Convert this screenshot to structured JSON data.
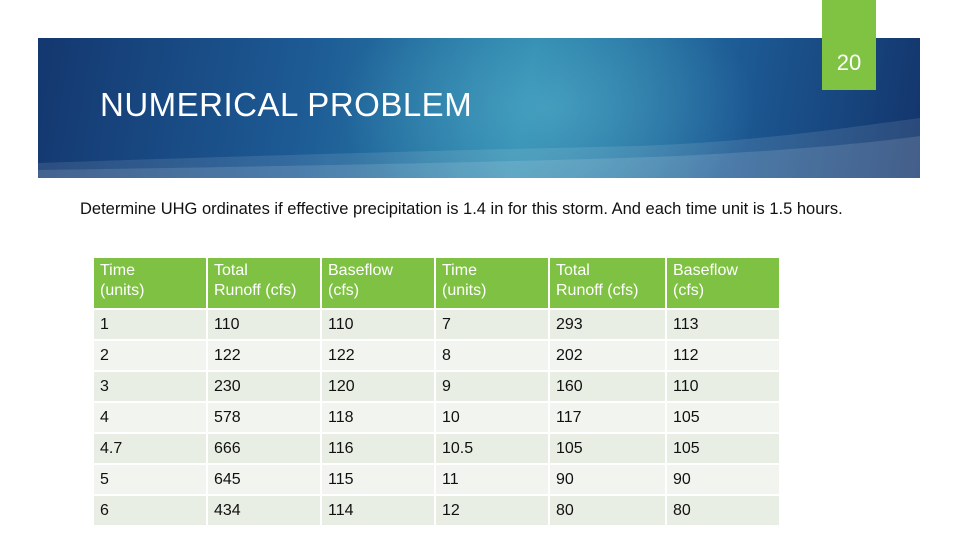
{
  "slide": {
    "page_number": "20",
    "title": "NUMERICAL PROBLEM",
    "body_text": "Determine UHG ordinates if effective precipitation is 1.4 in for this storm. And each time unit is 1.5 hours."
  },
  "table": {
    "headers": [
      [
        "Time",
        "(units)"
      ],
      [
        "Total",
        "Runoff (cfs)"
      ],
      [
        "Baseflow",
        "(cfs)"
      ],
      [
        "Time",
        "(units)"
      ],
      [
        "Total",
        "Runoff (cfs)"
      ],
      [
        "Baseflow",
        "(cfs)"
      ]
    ],
    "rows": [
      [
        "1",
        "110",
        "110",
        "7",
        "293",
        "113"
      ],
      [
        "2",
        "122",
        "122",
        "8",
        "202",
        "112"
      ],
      [
        "3",
        "230",
        "120",
        "9",
        "160",
        "110"
      ],
      [
        "4",
        "578",
        "118",
        "10",
        "117",
        "105"
      ],
      [
        "4.7",
        "666",
        "116",
        "10.5",
        "105",
        "105"
      ],
      [
        "5",
        "645",
        "115",
        "11",
        "90",
        "90"
      ],
      [
        "6",
        "434",
        "114",
        "12",
        "80",
        "80"
      ]
    ]
  },
  "colors": {
    "banner_dark": "#14376f",
    "banner_light": "#2b86ad",
    "accent_green": "#80c242",
    "row_light": "#e9eee5"
  }
}
